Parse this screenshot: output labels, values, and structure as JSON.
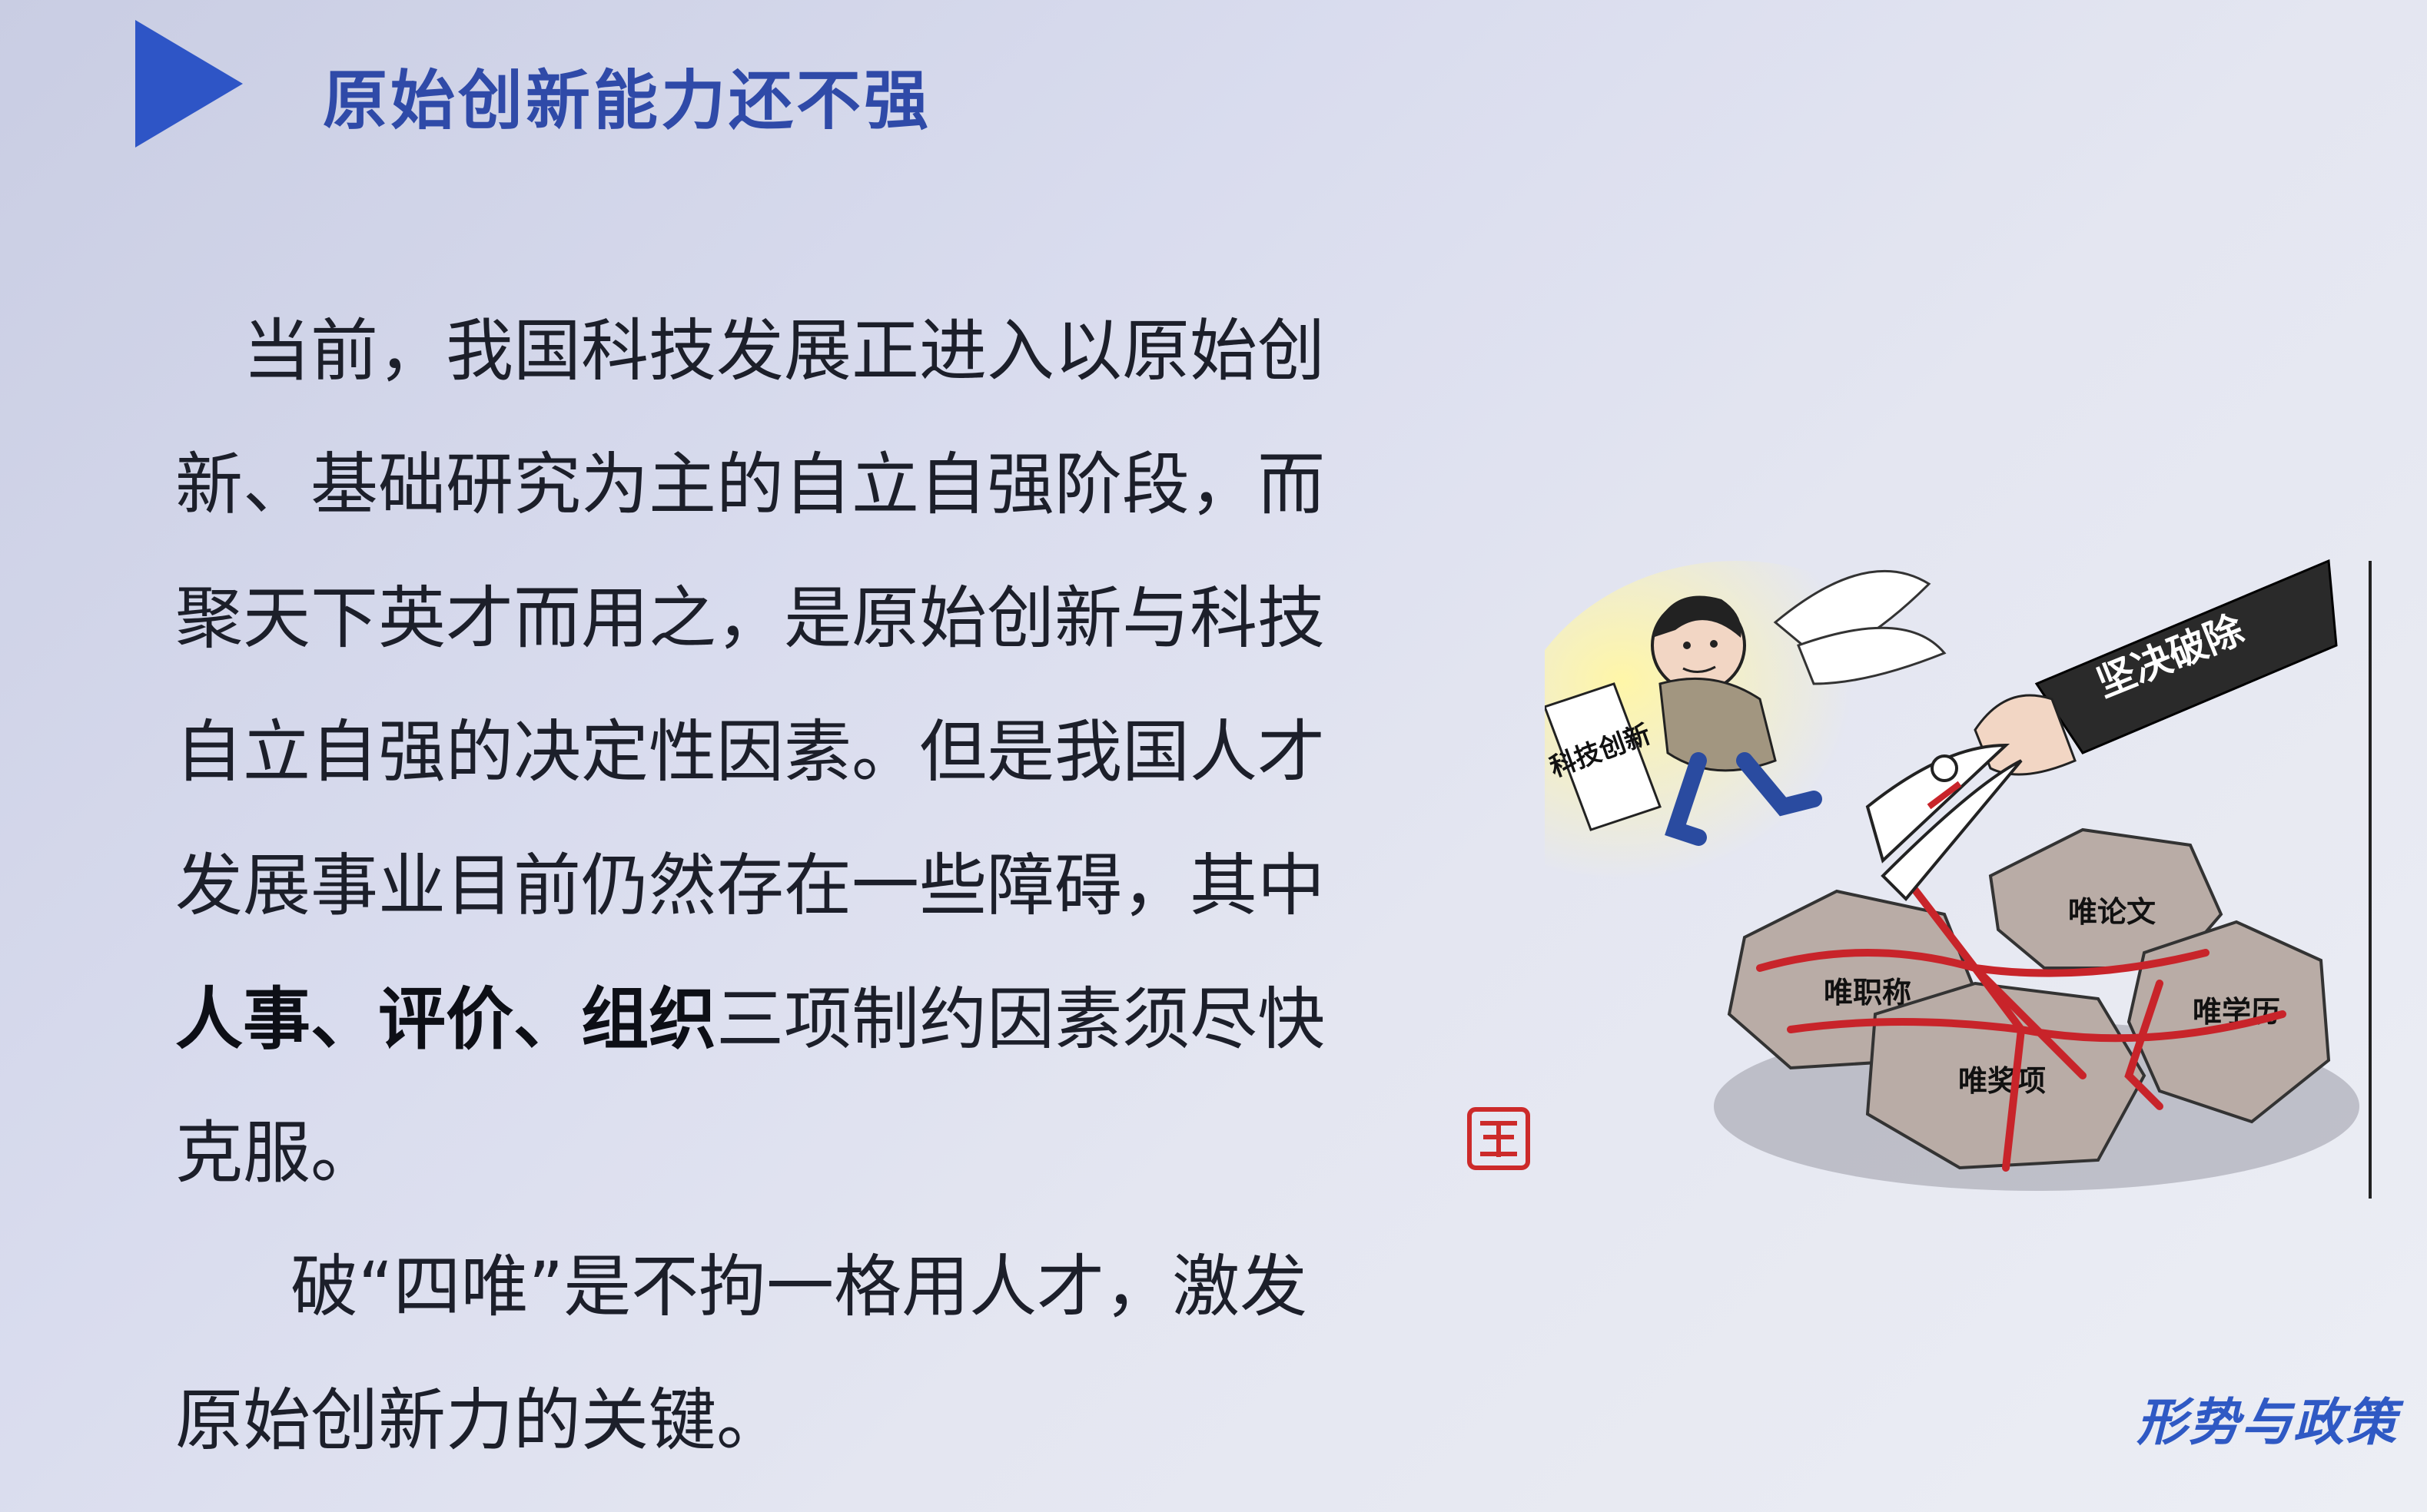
{
  "slide": {
    "title": "原始创新能力还不强",
    "paragraph1": {
      "before": "当前，我国科技发展正进入以原始创新、基础研究为主的自立自强阶段，而聚天下英才而用之，是原始创新与科技自立自强的决定性因素。但是我国人才发展事业目前仍然存在一些障碍，其中",
      "bold1": "人事",
      "sep1": "、",
      "bold2": "评价",
      "sep2": "、",
      "bold3": "组织",
      "after": "三项制约因素须尽快克服。"
    },
    "paragraph2": "破“四唯”是不拘一格用人才，激发原始创新力的关键。"
  },
  "cartoon": {
    "sleeve_label": "坚决破除",
    "paper_label": "科技创新",
    "rocks": [
      "唯论文",
      "唯职称",
      "唯学历",
      "唯奖项"
    ]
  },
  "footer": {
    "brand": "形势与政策"
  },
  "colors": {
    "accent": "#2f4aa8",
    "arrow": "#2e55c6",
    "text": "#1c1f2a",
    "rope": "#c8242a"
  }
}
